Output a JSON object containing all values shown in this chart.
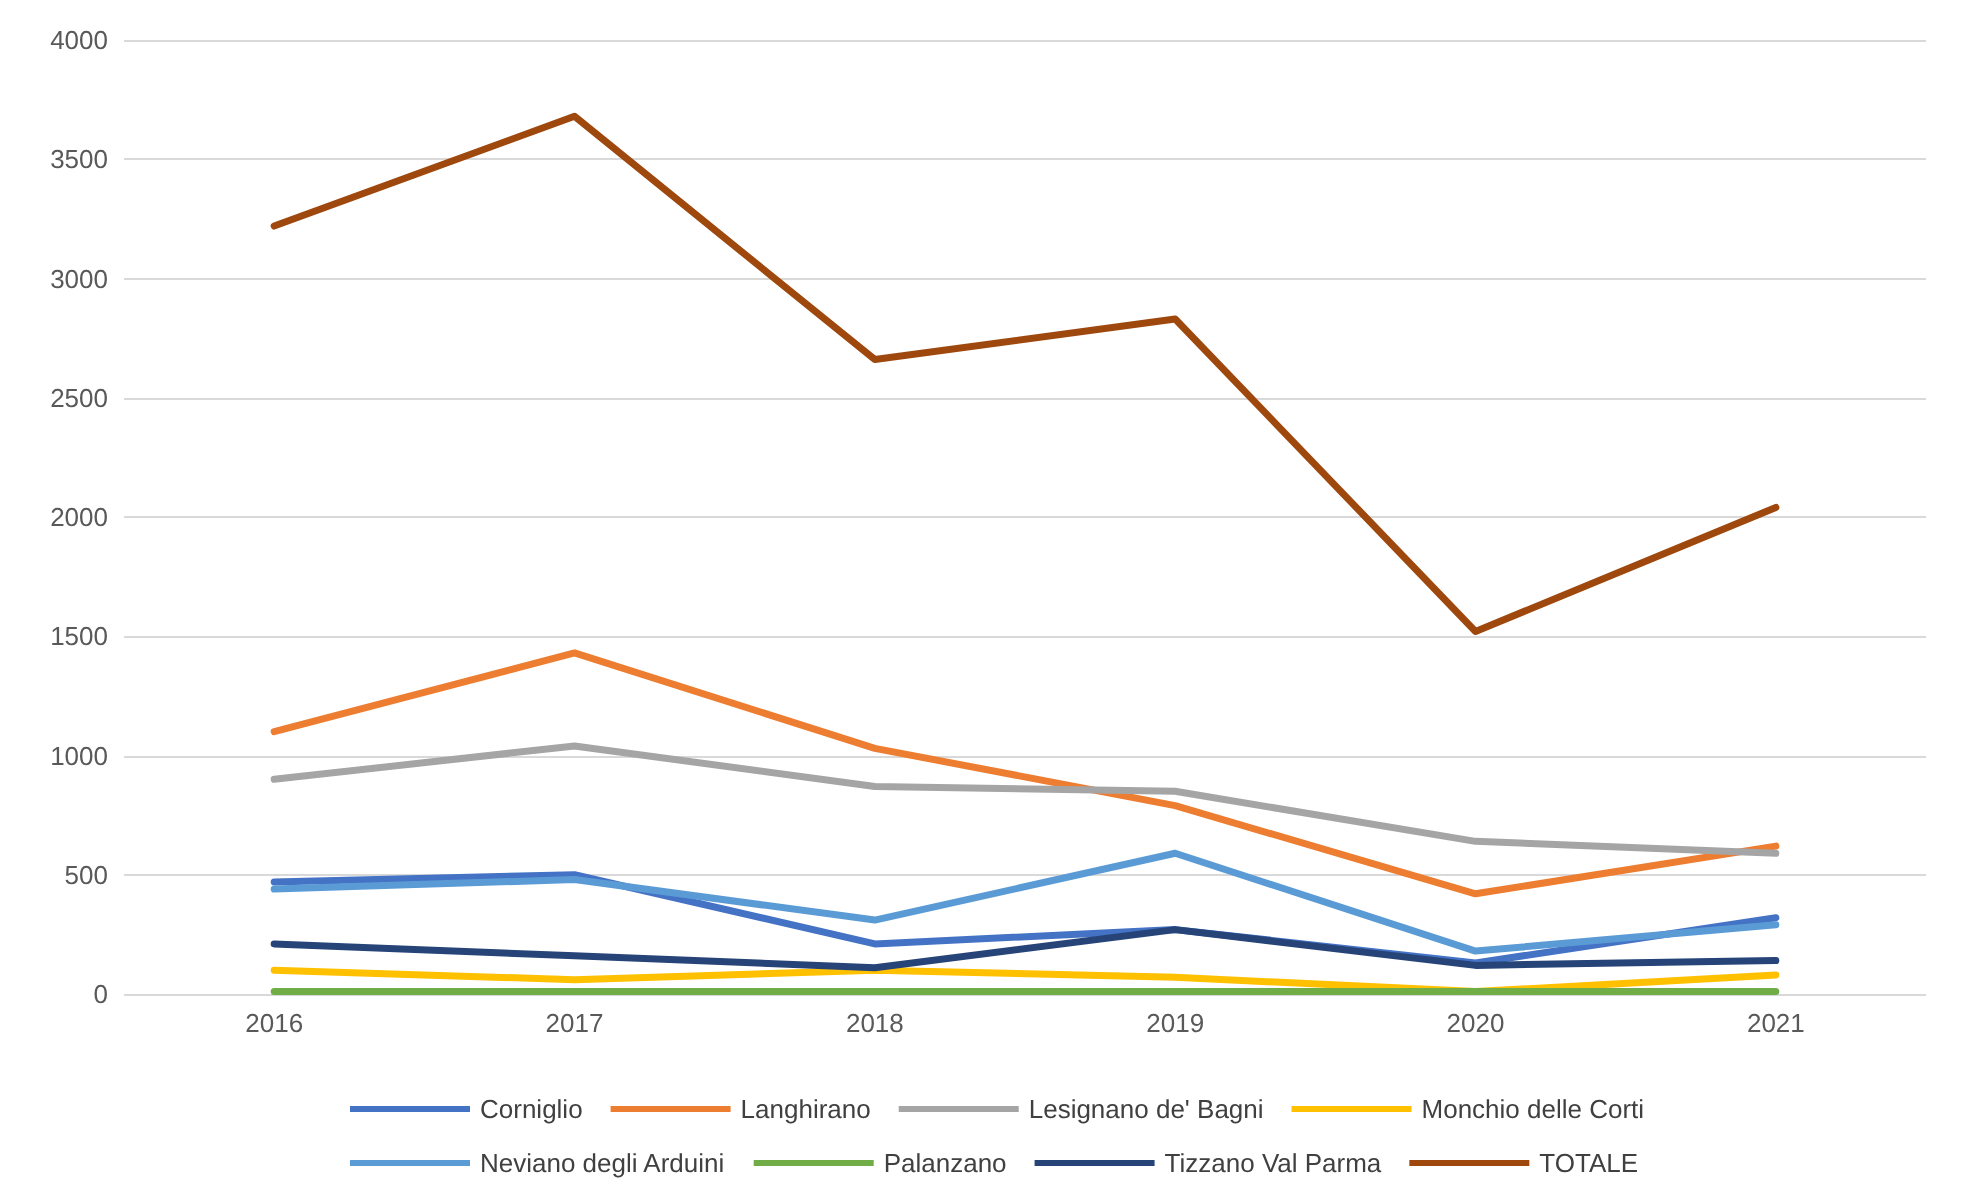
{
  "chart_data": {
    "type": "line",
    "categories": [
      "2016",
      "2017",
      "2018",
      "2019",
      "2020",
      "2021"
    ],
    "series": [
      {
        "name": "Corniglio",
        "color": "#4472c4",
        "values": [
          470,
          500,
          210,
          270,
          130,
          320
        ]
      },
      {
        "name": "Langhirano",
        "color": "#ed7d31",
        "values": [
          1100,
          1430,
          1030,
          790,
          420,
          620
        ]
      },
      {
        "name": "Lesignano de' Bagni",
        "color": "#a5a5a5",
        "values": [
          900,
          1040,
          870,
          850,
          640,
          590
        ]
      },
      {
        "name": "Monchio delle Corti",
        "color": "#ffc000",
        "values": [
          100,
          60,
          100,
          70,
          10,
          80
        ]
      },
      {
        "name": "Neviano degli Arduini",
        "color": "#5b9bd5",
        "values": [
          440,
          480,
          310,
          590,
          180,
          290
        ]
      },
      {
        "name": "Palanzano",
        "color": "#70ad47",
        "values": [
          10,
          10,
          10,
          10,
          10,
          10
        ]
      },
      {
        "name": "Tizzano Val Parma",
        "color": "#264478",
        "values": [
          210,
          160,
          110,
          270,
          120,
          140
        ]
      },
      {
        "name": "TOTALE",
        "color": "#9e480e",
        "values": [
          3220,
          3680,
          2660,
          2830,
          1520,
          2040
        ]
      }
    ],
    "ylim": [
      0,
      4000
    ],
    "yticks": [
      0,
      500,
      1000,
      1500,
      2000,
      2500,
      3000,
      3500,
      4000
    ],
    "grid": "y",
    "legend": "bottom",
    "marker": "none",
    "line_style": "solid"
  }
}
